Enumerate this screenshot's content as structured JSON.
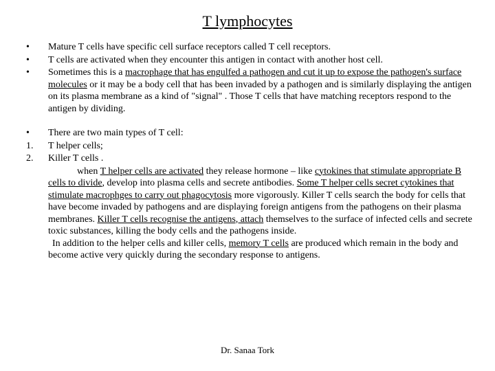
{
  "title": "T lymphocytes",
  "bullets1": [
    {
      "marker": "•",
      "html": "Mature T cells have specific cell surface receptors called T cell receptors."
    },
    {
      "marker": "•",
      "html": "T cells are activated when they encounter this antigen in contact with another host cell."
    },
    {
      "marker": "•",
      "html": "Sometimes this is a <u>macrophage that has engulfed a pathogen and cut it up to expose the pathogen's surface molecules</u> or it may be a body cell that has been invaded by a pathogen and is similarly displaying the antigen on its plasma membrane as a kind of \"signal\" . Those T cells that have matching receptors respond to the antigen by dividing."
    }
  ],
  "bullets2": [
    {
      "marker": "•",
      "html": "There are two main types of T cell:"
    },
    {
      "marker": "1.",
      "html": "T helper cells;"
    },
    {
      "marker": "2.",
      "html": "Killer T cells ."
    }
  ],
  "para1": "when <u>T helper cells are activated</u> they release hormone – like <u>cytokines that stimulate appropriate B cells to divide</u>, develop into plasma cells and secrete antibodies.  <u>Some T helper cells secret cytokines that stimulate macrophges to carry out phagocytosis</u> more vigorously. Killer T cells search the body for cells that have become invaded by pathogens and are displaying foreign antigens from the pathogens on their plasma membranes. <u>Killer T cells recognise the antigens, attach</u> themselves to the surface of infected cells and secrete toxic substances, killing the body cells and the pathogens inside.",
  "para2": "In addition to the helper cells and killer cells, <u>memory T cells</u> are produced which remain in the body and become active very quickly during the secondary response to antigens.",
  "footer": "Dr. Sanaa Tork"
}
